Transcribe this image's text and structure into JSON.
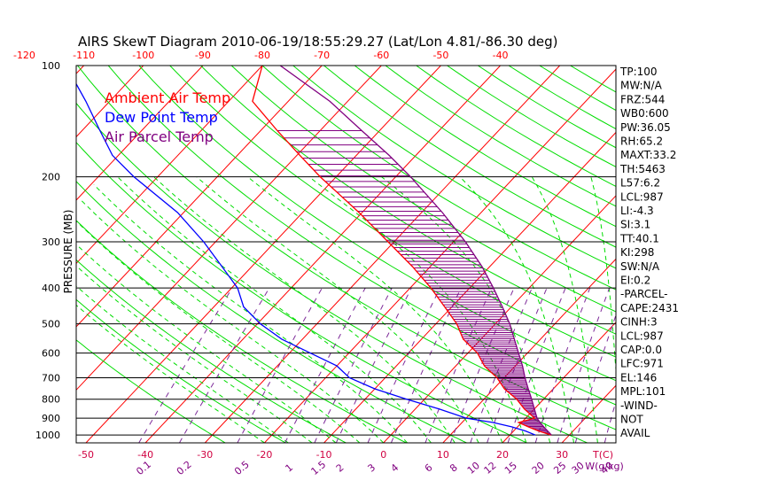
{
  "chart_data": {
    "type": "line",
    "title": "AIRS SkewT Diagram 2010-06-19/18:55:29.27 (Lat/Lon 4.81/-86.30 deg)",
    "ylabel": "PRESSURE (MB)",
    "xlabel_bottom": "T(C)",
    "mixing_ratio_label": "W(g/kg)",
    "y_scale": "log",
    "ylim": [
      1050,
      100
    ],
    "pressure_ticks": [
      100,
      200,
      300,
      400,
      500,
      600,
      700,
      800,
      900,
      1000
    ],
    "pressure_labels": [
      "100",
      "200",
      "300",
      "400",
      "500",
      "600",
      "700",
      "800",
      "900",
      "1000"
    ],
    "bottom_temp_ticks": [
      -50,
      -40,
      -30,
      -20,
      -10,
      0,
      10,
      20,
      30
    ],
    "bottom_temp_labels": [
      "-50",
      "-40",
      "-30",
      "-20",
      "-10",
      "0",
      "10",
      "20",
      "30"
    ],
    "top_temp_ticks": [
      -120,
      -110,
      -100,
      -90,
      -80,
      -70,
      -60,
      -50,
      -40
    ],
    "top_temp_labels": [
      "-120",
      "-110",
      "-100",
      "-90",
      "-80",
      "-70",
      "-60",
      "-50",
      "-40"
    ],
    "mixing_ratios": [
      0.1,
      0.2,
      0.5,
      1,
      1.5,
      2,
      3,
      4,
      6,
      8,
      10,
      12,
      15,
      20,
      25,
      30,
      40
    ],
    "mixing_ratio_labels": [
      "0.1",
      "0.2",
      "0.5",
      "1",
      "1.5",
      "2",
      "3",
      "4",
      "6",
      "8",
      "10",
      "12",
      "15",
      "20",
      "25",
      "30",
      "40"
    ],
    "legend": [
      {
        "name": "Ambient Air Temp",
        "color": "#ff0000"
      },
      {
        "name": "Dew Point Temp",
        "color": "#0000ff"
      },
      {
        "name": "Air Parcel Temp",
        "color": "#800080"
      }
    ],
    "series": [
      {
        "name": "Ambient Air Temp",
        "color": "#ff0000",
        "pressure": [
          1000,
          975,
          950,
          925,
          900,
          850,
          800,
          750,
          700,
          650,
          600,
          550,
          500,
          450,
          400,
          350,
          300,
          250,
          200,
          175,
          150,
          125,
          100
        ],
        "temperature": [
          27,
          24.2,
          21.8,
          19.5,
          21.5,
          18.3,
          15.5,
          11.8,
          8.8,
          4.8,
          1.6,
          -3,
          -6.5,
          -11.2,
          -16.5,
          -23,
          -31,
          -40.5,
          -52.7,
          -59.5,
          -67.2,
          -76,
          -80
        ]
      },
      {
        "name": "Dew Point Temp",
        "color": "#0000ff",
        "pressure": [
          1000,
          975,
          950,
          925,
          900,
          850,
          800,
          750,
          700,
          650,
          600,
          550,
          500,
          450,
          400,
          350,
          300,
          250,
          200,
          175,
          150,
          125,
          100
        ],
        "temperature": [
          24.3,
          22,
          19,
          15.2,
          10,
          4,
          -3,
          -10,
          -16,
          -20,
          -26.5,
          -33.5,
          -39.5,
          -45,
          -49,
          -55,
          -62,
          -71,
          -84,
          -91,
          -97,
          -104,
          -113
        ]
      },
      {
        "name": "Air Parcel Temp",
        "color": "#800080",
        "pressure": [
          1000,
          975,
          950,
          925,
          900,
          850,
          800,
          750,
          700,
          650,
          600,
          550,
          500,
          450,
          400,
          350,
          300,
          250,
          200,
          175,
          150,
          125,
          100
        ],
        "temperature": [
          27,
          25.7,
          24.4,
          23.1,
          21.9,
          20,
          18,
          15.8,
          13.5,
          11.2,
          8.5,
          5.6,
          2.4,
          -1.5,
          -6,
          -11.3,
          -18,
          -26.5,
          -37.5,
          -44.5,
          -53,
          -63,
          -77
        ]
      }
    ],
    "indices": [
      "TP:100",
      "MW:N/A",
      "FRZ:544",
      "WB0:600",
      "PW:36.05",
      "RH:65.2",
      "MAXT:33.2",
      "TH:5463",
      "L57:6.2",
      "LCL:987",
      "LI:-4.3",
      "SI:3.1",
      "TT:40.1",
      "KI:298",
      "SW:N/A",
      "EI:0.2",
      "-PARCEL-",
      "CAPE:2431",
      "CINH:3",
      "LCL:987",
      "CAP:0.0",
      "LFC:971",
      "EL:146",
      "MPL:101",
      "-WIND-",
      "NOT",
      "AVAIL"
    ],
    "colors": {
      "isotherm": "#ff0000",
      "dry_adiabat": "#00dd00",
      "moist_adiabat": "#00dd00",
      "mixing_ratio": "#7d2a99",
      "axis_text_bottom": "#d00040",
      "axis_text_top": "#ff0000",
      "mixing_label": "#800080",
      "isobar": "#000000"
    }
  }
}
